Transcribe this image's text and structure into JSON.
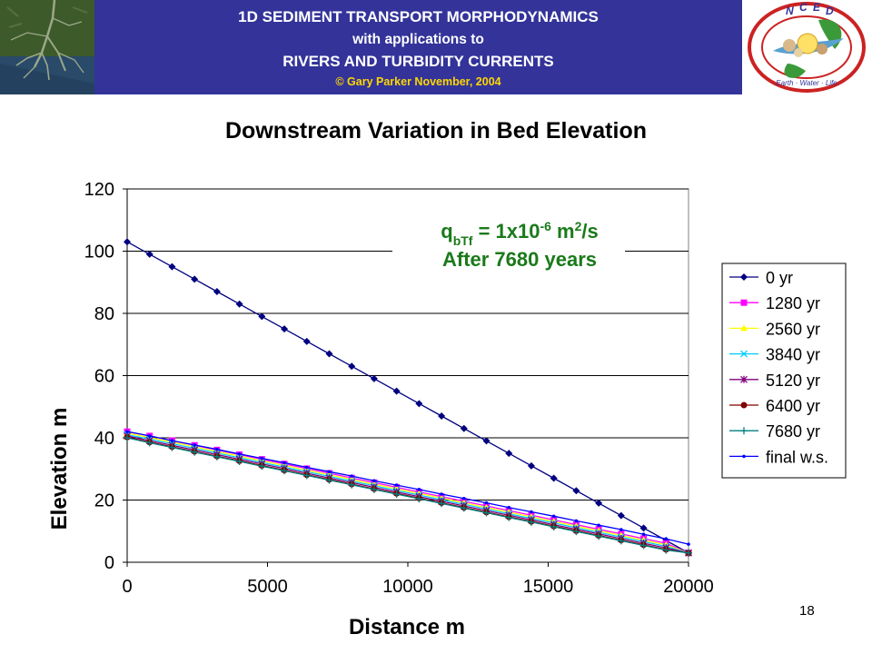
{
  "header": {
    "line1": "1D SEDIMENT TRANSPORT MORPHODYNAMICS",
    "line2": "with applications to",
    "line3": "RIVERS AND TURBIDITY CURRENTS",
    "copyright": "© Gary Parker November, 2004",
    "logo_top_letters": [
      "N",
      "C",
      "E",
      "D"
    ],
    "logo_bottom_text": "Earth · Water · Life"
  },
  "colors": {
    "banner": "#33339a",
    "annotation": "#1a7a1a",
    "copyright": "#ffd700"
  },
  "annotation": {
    "q_symbol": "q",
    "q_subscript": "bTf",
    "eq_base": " = 1x10",
    "eq_exp": "-6",
    "eq_unit_pre": " m",
    "eq_unit_exp": "2",
    "eq_unit_post": "/s",
    "time": "After 7680 years"
  },
  "slide_number": "18",
  "chart_data": {
    "type": "line",
    "title": "Downstream Variation in Bed Elevation",
    "xlabel": "Distance m",
    "ylabel": "Elevation m",
    "xlim": [
      0,
      20000
    ],
    "ylim": [
      0,
      120
    ],
    "x_ticks": [
      0,
      5000,
      10000,
      15000,
      20000
    ],
    "y_ticks": [
      0,
      20,
      40,
      60,
      80,
      100,
      120
    ],
    "grid": "horizontal",
    "legend_position": "right",
    "x": [
      0,
      800,
      1600,
      2400,
      3200,
      4000,
      4800,
      5600,
      6400,
      7200,
      8000,
      8800,
      9600,
      10400,
      11200,
      12000,
      12800,
      13600,
      14400,
      15200,
      16000,
      16800,
      17600,
      18400,
      19200,
      20000
    ],
    "series": [
      {
        "name": "0 yr",
        "color": "#000080",
        "marker": "diamond",
        "values": [
          103,
          99,
          95,
          91,
          87,
          83,
          79,
          75,
          71,
          67,
          63,
          59,
          55,
          51,
          47,
          43,
          39,
          35,
          31,
          27,
          23,
          19,
          15,
          11,
          7,
          3
        ]
      },
      {
        "name": "1280 yr",
        "color": "#ff00ff",
        "marker": "square",
        "values": [
          42,
          40.6,
          39.1,
          37.6,
          36.1,
          34.6,
          33.1,
          31.6,
          30.1,
          28.6,
          27.1,
          25.6,
          24.1,
          22.6,
          21.1,
          19.6,
          18.1,
          16.6,
          15.1,
          13.6,
          12.1,
          10.6,
          9.1,
          7.6,
          6.1,
          3
        ]
      },
      {
        "name": "2560 yr",
        "color": "#ffff00",
        "marker": "triangle",
        "values": [
          41.5,
          40.1,
          38.6,
          37.1,
          35.6,
          34.1,
          32.6,
          31.1,
          29.6,
          28.1,
          26.6,
          25.1,
          23.6,
          22.1,
          20.6,
          19.1,
          17.6,
          16.1,
          14.6,
          13.1,
          11.6,
          10.1,
          8.6,
          7.1,
          5.6,
          3
        ]
      },
      {
        "name": "3840 yr",
        "color": "#00ccff",
        "marker": "x",
        "values": [
          41,
          39.6,
          38.1,
          36.6,
          35.1,
          33.6,
          32.1,
          30.6,
          29.1,
          27.6,
          26.1,
          24.6,
          23.1,
          21.6,
          20.1,
          18.6,
          17.1,
          15.6,
          14.1,
          12.6,
          11.1,
          9.6,
          8.1,
          6.6,
          5.1,
          3
        ]
      },
      {
        "name": "5120 yr",
        "color": "#800080",
        "marker": "star",
        "values": [
          40.6,
          39.1,
          37.6,
          36.1,
          34.6,
          33.1,
          31.6,
          30.1,
          28.6,
          27.1,
          25.6,
          24.1,
          22.6,
          21.1,
          19.6,
          18.1,
          16.6,
          15.1,
          13.6,
          12.1,
          10.6,
          9.1,
          7.6,
          6.1,
          4.6,
          3
        ]
      },
      {
        "name": "6400 yr",
        "color": "#800000",
        "marker": "circle",
        "values": [
          40.2,
          38.6,
          37.1,
          35.6,
          34.1,
          32.6,
          31.1,
          29.6,
          28.1,
          26.6,
          25.1,
          23.6,
          22.1,
          20.6,
          19.1,
          17.6,
          16.1,
          14.6,
          13.1,
          11.6,
          10.1,
          8.6,
          7.1,
          5.6,
          4.1,
          3
        ]
      },
      {
        "name": "7680 yr",
        "color": "#008080",
        "marker": "plus",
        "values": [
          40,
          38.4,
          36.9,
          35.4,
          33.9,
          32.4,
          30.9,
          29.4,
          27.9,
          26.4,
          24.9,
          23.4,
          21.9,
          20.4,
          18.9,
          17.4,
          15.9,
          14.4,
          12.9,
          11.4,
          9.9,
          8.4,
          6.9,
          5.4,
          3.9,
          3
        ]
      },
      {
        "name": "final w.s.",
        "color": "#0000ff",
        "marker": "dot",
        "values": [
          42,
          40.6,
          39.1,
          37.7,
          36.3,
          34.8,
          33.4,
          32,
          30.5,
          29.1,
          27.7,
          26.2,
          24.8,
          23.4,
          21.9,
          20.5,
          19.1,
          17.6,
          16.2,
          14.8,
          13.3,
          11.9,
          10.5,
          9,
          7.5,
          5.8
        ]
      }
    ]
  }
}
